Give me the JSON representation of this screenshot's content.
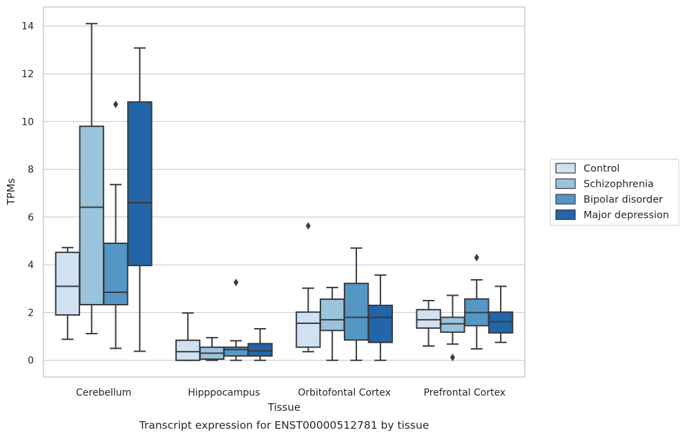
{
  "chart_data": {
    "type": "box",
    "xlabel": "Tissue",
    "ylabel": "TPMs",
    "caption": "Transcript expression for ENST00000512781 by tissue",
    "ylim": [
      -0.7,
      14.8
    ],
    "yticks": [
      0,
      2,
      4,
      6,
      8,
      10,
      12,
      14
    ],
    "grid": true,
    "legend_position": "right",
    "categories": [
      "Cerebellum",
      "Hipppocampus",
      "Orbitofontal Cortex",
      "Prefrontal Cortex"
    ],
    "series": [
      {
        "name": "Control",
        "color": "#d0e1f2",
        "boxes": [
          {
            "whislo": 0.88,
            "q1": 1.9,
            "med": 3.1,
            "q3": 4.52,
            "whishi": 4.72,
            "fliers": []
          },
          {
            "whislo": 0.0,
            "q1": 0.0,
            "med": 0.36,
            "q3": 0.84,
            "whishi": 1.98,
            "fliers": []
          },
          {
            "whislo": 0.36,
            "q1": 0.55,
            "med": 1.55,
            "q3": 2.02,
            "whishi": 3.02,
            "fliers": [
              5.63
            ]
          },
          {
            "whislo": 0.6,
            "q1": 1.35,
            "med": 1.7,
            "q3": 2.12,
            "whishi": 2.5,
            "fliers": []
          }
        ]
      },
      {
        "name": "Schizophrenia",
        "color": "#9ac3dc",
        "boxes": [
          {
            "whislo": 1.12,
            "q1": 2.33,
            "med": 6.41,
            "q3": 9.8,
            "whishi": 14.1,
            "fliers": []
          },
          {
            "whislo": 0.0,
            "q1": 0.05,
            "med": 0.3,
            "q3": 0.55,
            "whishi": 0.95,
            "fliers": []
          },
          {
            "whislo": 0.0,
            "q1": 1.25,
            "med": 1.7,
            "q3": 2.56,
            "whishi": 3.05,
            "fliers": []
          },
          {
            "whislo": 0.68,
            "q1": 1.18,
            "med": 1.53,
            "q3": 1.8,
            "whishi": 2.72,
            "fliers": [
              0.12
            ]
          }
        ]
      },
      {
        "name": "Bipolar disorder",
        "color": "#5497c7",
        "boxes": [
          {
            "whislo": 0.5,
            "q1": 2.33,
            "med": 2.85,
            "q3": 4.9,
            "whishi": 7.36,
            "fliers": [
              10.72
            ]
          },
          {
            "whislo": 0.0,
            "q1": 0.18,
            "med": 0.45,
            "q3": 0.55,
            "whishi": 0.82,
            "fliers": [
              3.26
            ]
          },
          {
            "whislo": 0.0,
            "q1": 0.85,
            "med": 1.8,
            "q3": 3.22,
            "whishi": 4.7,
            "fliers": []
          },
          {
            "whislo": 0.48,
            "q1": 1.45,
            "med": 2.0,
            "q3": 2.57,
            "whishi": 3.37,
            "fliers": [
              4.3
            ]
          }
        ]
      },
      {
        "name": "Major depression",
        "color": "#2265a9",
        "boxes": [
          {
            "whislo": 0.38,
            "q1": 3.97,
            "med": 6.6,
            "q3": 10.82,
            "whishi": 13.08,
            "fliers": []
          },
          {
            "whislo": 0.0,
            "q1": 0.18,
            "med": 0.4,
            "q3": 0.7,
            "whishi": 1.32,
            "fliers": []
          },
          {
            "whislo": 0.0,
            "q1": 0.75,
            "med": 1.8,
            "q3": 2.3,
            "whishi": 3.57,
            "fliers": []
          },
          {
            "whislo": 0.75,
            "q1": 1.15,
            "med": 1.62,
            "q3": 2.02,
            "whishi": 3.1,
            "fliers": []
          }
        ]
      }
    ]
  }
}
